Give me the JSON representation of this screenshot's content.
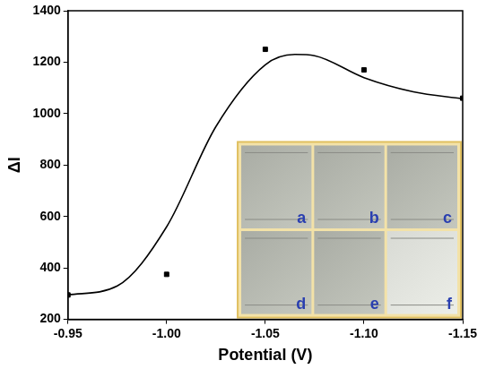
{
  "chart_data": {
    "type": "scatter",
    "x_label": "Potential (V)",
    "y_label": "ΔI",
    "xlim": [
      -0.95,
      -1.15
    ],
    "xticks": [
      -0.95,
      {
        "value": -1,
        "label": "-1.00"
      },
      -1.05,
      {
        "value": -1.1,
        "label": "-1.10"
      },
      -1.15
    ],
    "ylim": [
      200,
      1400
    ],
    "yticks": [
      200,
      400,
      600,
      800,
      1000,
      1200,
      1400
    ],
    "grid": false,
    "series": [
      {
        "type": "scatter",
        "marker": "square",
        "color": "#000000",
        "x": [
          -0.95,
          -1.0,
          -1.05,
          -1.1,
          -1.15
        ],
        "values": [
          295,
          375,
          1250,
          1170,
          1060
        ]
      },
      {
        "type": "line",
        "line_style": "solid",
        "color": "#000000",
        "x": [
          -0.95,
          -0.975,
          -1.0,
          -1.025,
          -1.05,
          -1.065,
          -1.075,
          -1.1,
          -1.125,
          -1.15
        ],
        "values": [
          295,
          330,
          560,
          950,
          1190,
          1230,
          1225,
          1140,
          1085,
          1058
        ]
      }
    ],
    "annotations": [
      "a",
      "b",
      "c",
      "d",
      "e",
      "f"
    ]
  }
}
